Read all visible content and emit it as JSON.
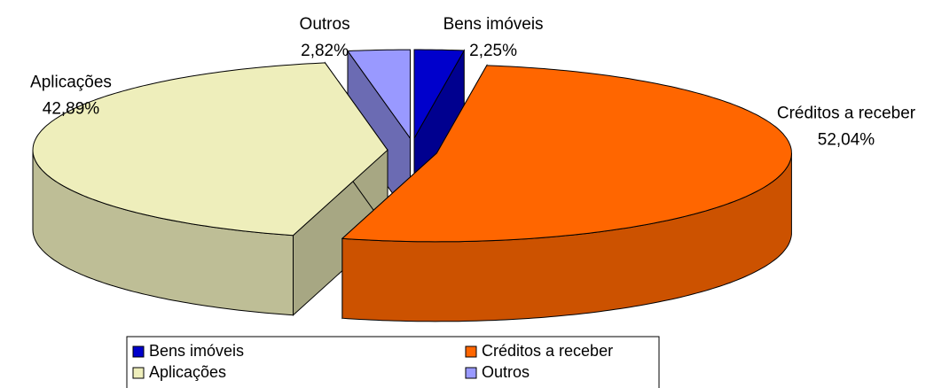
{
  "chart_data": {
    "type": "pie",
    "categories": [
      "Bens imóveis",
      "Créditos a receber",
      "Aplicações",
      "Outros"
    ],
    "values": [
      2.25,
      52.04,
      42.89,
      2.82
    ],
    "value_labels": [
      "2,25%",
      "52,04%",
      "42,89%",
      "2,82%"
    ],
    "colors": [
      "#0000cc",
      "#ff6600",
      "#eeeebb",
      "#9999ff"
    ],
    "legend": "bottom"
  }
}
